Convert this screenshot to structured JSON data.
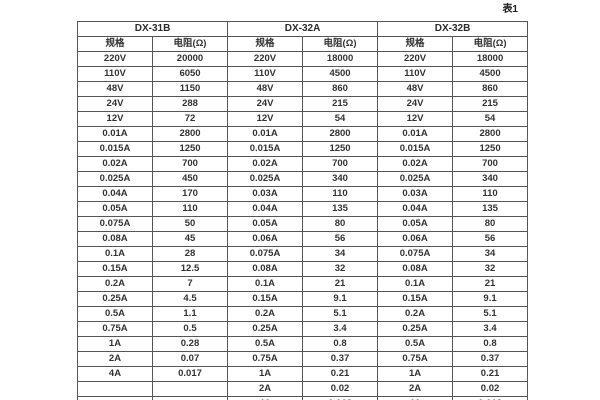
{
  "page": {
    "table_label": "表1"
  },
  "table": {
    "groups": [
      {
        "name": "DX-31B",
        "col_headers": [
          "规格",
          "电阻(Ω)"
        ]
      },
      {
        "name": "DX-32A",
        "col_headers": [
          "规格",
          "电阻(Ω)"
        ]
      },
      {
        "name": "DX-32B",
        "col_headers": [
          "规格",
          "电阻(Ω)"
        ]
      }
    ],
    "rows": [
      [
        "220V",
        "20000",
        "220V",
        "18000",
        "220V",
        "18000"
      ],
      [
        "110V",
        "6050",
        "110V",
        "4500",
        "110V",
        "4500"
      ],
      [
        "48V",
        "1150",
        "48V",
        "860",
        "48V",
        "860"
      ],
      [
        "24V",
        "288",
        "24V",
        "215",
        "24V",
        "215"
      ],
      [
        "12V",
        "72",
        "12V",
        "54",
        "12V",
        "54"
      ],
      [
        "0.01A",
        "2800",
        "0.01A",
        "2800",
        "0.01A",
        "2800"
      ],
      [
        "0.015A",
        "1250",
        "0.015A",
        "1250",
        "0.015A",
        "1250"
      ],
      [
        "0.02A",
        "700",
        "0.02A",
        "700",
        "0.02A",
        "700"
      ],
      [
        "0.025A",
        "450",
        "0.025A",
        "340",
        "0.025A",
        "340"
      ],
      [
        "0.04A",
        "170",
        "0.03A",
        "110",
        "0.03A",
        "110"
      ],
      [
        "0.05A",
        "110",
        "0.04A",
        "135",
        "0.04A",
        "135"
      ],
      [
        "0.075A",
        "50",
        "0.05A",
        "80",
        "0.05A",
        "80"
      ],
      [
        "0.08A",
        "45",
        "0.06A",
        "56",
        "0.06A",
        "56"
      ],
      [
        "0.1A",
        "28",
        "0.075A",
        "34",
        "0.075A",
        "34"
      ],
      [
        "0.15A",
        "12.5",
        "0.08A",
        "32",
        "0.08A",
        "32"
      ],
      [
        "0.2A",
        "7",
        "0.1A",
        "21",
        "0.1A",
        "21"
      ],
      [
        "0.25A",
        "4.5",
        "0.15A",
        "9.1",
        "0.15A",
        "9.1"
      ],
      [
        "0.5A",
        "1.1",
        "0.2A",
        "5.1",
        "0.2A",
        "5.1"
      ],
      [
        "0.75A",
        "0.5",
        "0.25A",
        "3.4",
        "0.25A",
        "3.4"
      ],
      [
        "1A",
        "0.28",
        "0.5A",
        "0.8",
        "0.5A",
        "0.8"
      ],
      [
        "2A",
        "0.07",
        "0.75A",
        "0.37",
        "0.75A",
        "0.37"
      ],
      [
        "4A",
        "0.017",
        "1A",
        "0.21",
        "1A",
        "0.21"
      ],
      [
        "",
        "",
        "2A",
        "0.02",
        "2A",
        "0.02"
      ],
      [
        "",
        "",
        "4A",
        "0.018",
        "4A",
        "0.018"
      ]
    ]
  }
}
